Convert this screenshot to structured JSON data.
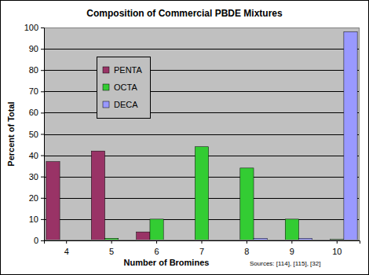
{
  "chart_data": {
    "type": "bar",
    "title": "Composition of Commercial PBDE Mixtures",
    "x_label": "Number of Bromines",
    "y_label": "Percent of Total",
    "annotations": [
      "Sources: [114], [115], [32]"
    ],
    "categories": [
      "4",
      "5",
      "6",
      "7",
      "8",
      "9",
      "10"
    ],
    "series": [
      {
        "name": "PENTA",
        "color": "#993366",
        "values": [
          37,
          42,
          4,
          0,
          0,
          0,
          0
        ]
      },
      {
        "name": "OCTA",
        "color": "#33cc33",
        "values": [
          0,
          1,
          10,
          44,
          34,
          10,
          0.5
        ]
      },
      {
        "name": "DECA",
        "color": "#9999ff",
        "values": [
          0,
          0,
          0,
          0,
          1,
          1,
          98
        ]
      }
    ],
    "ylim": [
      0,
      100
    ],
    "yticks": [
      0,
      10,
      20,
      30,
      40,
      50,
      60,
      70,
      80,
      90,
      100
    ],
    "grid": true,
    "legend": "upper left"
  }
}
